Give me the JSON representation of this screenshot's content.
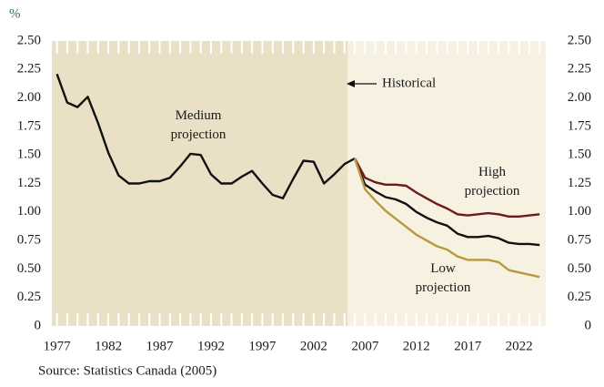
{
  "chart_data": {
    "type": "line",
    "y_label": "%",
    "source": "Source: Statistics Canada (2005)",
    "xlim": [
      1976.5,
      2024.6
    ],
    "xticks": [
      1977,
      1982,
      1987,
      1992,
      1997,
      2002,
      2007,
      2012,
      2017,
      2022
    ],
    "ylim": [
      0,
      2.5
    ],
    "yticks": [
      0,
      0.25,
      {
        "value": 0.5,
        "label": "0.50"
      },
      0.75,
      {
        "value": 1,
        "label": "1.00"
      },
      1.25,
      {
        "value": 1.5,
        "label": "1.50"
      },
      1.75,
      {
        "value": 2,
        "label": "2.00"
      },
      2.25,
      {
        "value": 2.5,
        "label": "2.50"
      }
    ],
    "y2lim": [
      0,
      2.5
    ],
    "y2ticks": [
      0,
      0.25,
      {
        "value": 0.5,
        "label": "0.50"
      },
      0.75,
      {
        "value": 1,
        "label": "1.00"
      },
      1.25,
      {
        "value": 1.5,
        "label": "1.50"
      },
      1.75,
      {
        "value": 2,
        "label": "2.00"
      },
      2.25,
      {
        "value": 2.5,
        "label": "2.50"
      }
    ],
    "historical_range": [
      1976.5,
      2005.3
    ],
    "historical_color": "#e9e0c5",
    "projection_color": "#f6f1e1",
    "series": [
      {
        "name": "Historical",
        "color": "#111111",
        "x": [
          1977,
          1978,
          1979,
          1980,
          1981,
          1982,
          1983,
          1984,
          1985,
          1986,
          1987,
          1988,
          1989,
          1990,
          1991,
          1992,
          1993,
          1994,
          1995,
          1996,
          1997,
          1998,
          1999,
          2000,
          2001,
          2002,
          2003,
          2004,
          2005,
          2006
        ],
        "values": [
          2.21,
          1.96,
          1.92,
          2.01,
          1.78,
          1.52,
          1.32,
          1.25,
          1.25,
          1.27,
          1.27,
          1.3,
          1.4,
          1.51,
          1.5,
          1.33,
          1.25,
          1.25,
          1.31,
          1.36,
          1.25,
          1.15,
          1.12,
          1.29,
          1.45,
          1.44,
          1.25,
          1.33,
          1.42,
          1.47
        ]
      },
      {
        "name": "Medium projection",
        "color": "#111111",
        "x": [
          2006,
          2007,
          2008,
          2009,
          2010,
          2011,
          2012,
          2013,
          2014,
          2015,
          2016,
          2017,
          2018,
          2019,
          2020,
          2021,
          2022,
          2023,
          2024
        ],
        "values": [
          1.47,
          1.24,
          1.18,
          1.13,
          1.11,
          1.07,
          1.0,
          0.95,
          0.91,
          0.88,
          0.81,
          0.78,
          0.78,
          0.79,
          0.77,
          0.73,
          0.72,
          0.72,
          0.71
        ]
      },
      {
        "name": "High projection",
        "color": "#6e1a1c",
        "x": [
          2006,
          2007,
          2008,
          2009,
          2010,
          2011,
          2012,
          2013,
          2014,
          2015,
          2016,
          2017,
          2018,
          2019,
          2020,
          2021,
          2022,
          2023,
          2024
        ],
        "values": [
          1.47,
          1.3,
          1.26,
          1.24,
          1.24,
          1.23,
          1.17,
          1.12,
          1.07,
          1.03,
          0.98,
          0.97,
          0.98,
          0.99,
          0.98,
          0.96,
          0.96,
          0.97,
          0.98
        ]
      },
      {
        "name": "Low projection",
        "color": "#b8993c",
        "x": [
          2006,
          2007,
          2008,
          2009,
          2010,
          2011,
          2012,
          2013,
          2014,
          2015,
          2016,
          2017,
          2018,
          2019,
          2020,
          2021,
          2022,
          2023,
          2024
        ],
        "values": [
          1.47,
          1.2,
          1.1,
          1.01,
          0.94,
          0.87,
          0.8,
          0.75,
          0.7,
          0.67,
          0.61,
          0.58,
          0.58,
          0.58,
          0.56,
          0.49,
          0.47,
          0.45,
          0.43
        ]
      }
    ]
  }
}
